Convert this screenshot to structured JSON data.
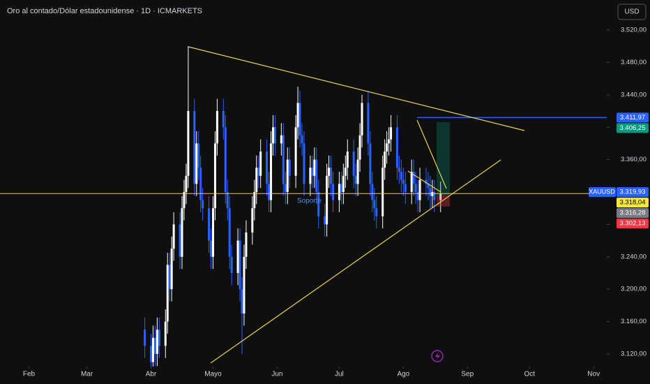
{
  "chart_data": {
    "type": "candlestick",
    "title": "Oro al contado/Dólar estadounidense · 1D · ICMARKETS",
    "currency_button": "USD",
    "symbol": "XAUUSD",
    "annotation": "Soporte",
    "up_color": "#ffffff",
    "down_color": "#2962ff",
    "xlim": [
      17,
      310
    ],
    "xticks": [
      {
        "value": 31,
        "label": "Feb"
      },
      {
        "value": 59,
        "label": "Mar"
      },
      {
        "value": 90,
        "label": "Abr"
      },
      {
        "value": 120,
        "label": "Mayo"
      },
      {
        "value": 151,
        "label": "Jun"
      },
      {
        "value": 181,
        "label": "Jul"
      },
      {
        "value": 212,
        "label": "Ago"
      },
      {
        "value": 243,
        "label": "Sep"
      },
      {
        "value": 273,
        "label": "Oct"
      },
      {
        "value": 304,
        "label": "Nov"
      }
    ],
    "ylim": [
      3120,
      3520
    ],
    "yticks": [
      {
        "value": 3120,
        "label": "3.120,00"
      },
      {
        "value": 3160,
        "label": "3.160,00"
      },
      {
        "value": 3200,
        "label": "3.200,00"
      },
      {
        "value": 3240,
        "label": "3.240,00"
      },
      {
        "value": 3280,
        "label": "3.280,00"
      },
      {
        "value": 3320,
        "label": "3.320,00"
      },
      {
        "value": 3360,
        "label": "3.360,00"
      },
      {
        "value": 3400,
        "label": "3.400,00"
      },
      {
        "value": 3440,
        "label": "3.440,00"
      },
      {
        "value": 3480,
        "label": "3.480,00"
      },
      {
        "value": 3520,
        "label": "3.520,00"
      }
    ],
    "grid": false,
    "x": [
      87,
      90,
      91,
      92,
      93,
      94,
      97,
      98,
      99,
      100,
      101,
      104,
      105,
      106,
      107,
      108,
      111,
      112,
      113,
      114,
      115,
      118,
      119,
      120,
      121,
      122,
      125,
      126,
      127,
      128,
      129,
      132,
      133,
      134,
      135,
      136,
      139,
      140,
      141,
      142,
      143,
      146,
      147,
      148,
      149,
      150,
      153,
      154,
      155,
      156,
      157,
      160,
      161,
      162,
      163,
      164,
      167,
      168,
      169,
      170,
      171,
      174,
      175,
      176,
      177,
      178,
      181,
      182,
      183,
      184,
      185,
      188,
      189,
      190,
      191,
      192,
      195,
      196,
      197,
      198,
      199,
      202,
      203,
      204,
      205,
      206,
      209,
      210,
      211,
      212,
      213,
      216,
      217,
      218,
      219,
      220,
      223,
      224,
      225,
      226,
      227,
      230
    ],
    "open": [
      3150,
      3130,
      3110,
      3140,
      3120,
      3150,
      3130,
      3160,
      3230,
      3200,
      3250,
      3280,
      3240,
      3300,
      3320,
      3340,
      3420,
      3330,
      3380,
      3350,
      3310,
      3300,
      3260,
      3240,
      3300,
      3380,
      3420,
      3400,
      3320,
      3300,
      3240,
      3220,
      3260,
      3200,
      3170,
      3240,
      3270,
      3300,
      3320,
      3350,
      3340,
      3370,
      3330,
      3310,
      3380,
      3400,
      3380,
      3390,
      3330,
      3320,
      3360,
      3340,
      3400,
      3430,
      3390,
      3380,
      3330,
      3350,
      3340,
      3360,
      3320,
      3290,
      3280,
      3340,
      3350,
      3330,
      3310,
      3330,
      3320,
      3340,
      3350,
      3370,
      3340,
      3330,
      3360,
      3390,
      3430,
      3380,
      3330,
      3310,
      3300,
      3290,
      3350,
      3370,
      3380,
      3385,
      3400,
      3350,
      3345,
      3335,
      3330,
      3320,
      3345,
      3330,
      3320,
      3310,
      3335,
      3330,
      3325,
      3315,
      3320,
      3310
    ],
    "high": [
      3165,
      3145,
      3155,
      3155,
      3165,
      3165,
      3175,
      3245,
      3245,
      3265,
      3295,
      3295,
      3315,
      3335,
      3355,
      3500,
      3435,
      3395,
      3395,
      3365,
      3325,
      3315,
      3275,
      3315,
      3395,
      3435,
      3435,
      3415,
      3335,
      3315,
      3255,
      3275,
      3275,
      3215,
      3255,
      3285,
      3315,
      3335,
      3365,
      3365,
      3385,
      3385,
      3345,
      3395,
      3415,
      3415,
      3405,
      3405,
      3345,
      3375,
      3375,
      3415,
      3450,
      3445,
      3405,
      3395,
      3365,
      3365,
      3375,
      3375,
      3335,
      3305,
      3355,
      3365,
      3365,
      3345,
      3345,
      3345,
      3355,
      3365,
      3385,
      3385,
      3355,
      3375,
      3405,
      3440,
      3445,
      3395,
      3345,
      3325,
      3315,
      3365,
      3385,
      3395,
      3400,
      3415,
      3415,
      3365,
      3360,
      3350,
      3345,
      3360,
      3360,
      3345,
      3335,
      3350,
      3350,
      3345,
      3340,
      3335,
      3335,
      3333
    ],
    "low": [
      3115,
      3095,
      3095,
      3105,
      3105,
      3115,
      3115,
      3145,
      3185,
      3185,
      3235,
      3225,
      3225,
      3285,
      3305,
      3325,
      3315,
      3315,
      3335,
      3295,
      3285,
      3245,
      3225,
      3225,
      3285,
      3365,
      3385,
      3305,
      3285,
      3225,
      3205,
      3205,
      3185,
      3120,
      3155,
      3225,
      3255,
      3285,
      3305,
      3325,
      3325,
      3315,
      3295,
      3295,
      3365,
      3365,
      3365,
      3315,
      3305,
      3305,
      3325,
      3325,
      3385,
      3375,
      3365,
      3315,
      3315,
      3325,
      3325,
      3305,
      3275,
      3265,
      3265,
      3325,
      3315,
      3295,
      3295,
      3305,
      3305,
      3325,
      3335,
      3325,
      3315,
      3315,
      3345,
      3375,
      3365,
      3315,
      3295,
      3285,
      3275,
      3275,
      3335,
      3355,
      3365,
      3370,
      3335,
      3330,
      3320,
      3315,
      3305,
      3305,
      3315,
      3305,
      3295,
      3295,
      3315,
      3310,
      3300,
      3300,
      3295,
      3295
    ],
    "close": [
      3130,
      3110,
      3140,
      3120,
      3150,
      3130,
      3160,
      3230,
      3200,
      3250,
      3280,
      3240,
      3300,
      3320,
      3340,
      3420,
      3330,
      3380,
      3350,
      3310,
      3300,
      3260,
      3240,
      3300,
      3380,
      3420,
      3400,
      3320,
      3300,
      3240,
      3220,
      3260,
      3200,
      3170,
      3240,
      3270,
      3300,
      3320,
      3350,
      3340,
      3370,
      3330,
      3310,
      3380,
      3400,
      3380,
      3390,
      3330,
      3320,
      3360,
      3340,
      3400,
      3430,
      3390,
      3380,
      3330,
      3350,
      3340,
      3360,
      3320,
      3290,
      3280,
      3340,
      3350,
      3330,
      3310,
      3330,
      3320,
      3340,
      3350,
      3370,
      3340,
      3330,
      3360,
      3390,
      3430,
      3380,
      3330,
      3310,
      3300,
      3290,
      3350,
      3370,
      3380,
      3385,
      3400,
      3350,
      3345,
      3335,
      3330,
      3320,
      3345,
      3330,
      3320,
      3310,
      3335,
      3330,
      3325,
      3315,
      3320,
      3310,
      3318
    ],
    "price_labels": [
      {
        "value": 3411.97,
        "label": "3.411,97",
        "color": "#2962ff"
      },
      {
        "value": 3406.25,
        "label": "3.406,25",
        "color": "#089981"
      },
      {
        "value": 3319.93,
        "label": "3.319,93",
        "color": "#2962ff"
      },
      {
        "value": 3318.04,
        "label": "3.318,04",
        "color": "#f5e642"
      },
      {
        "value": 3316.28,
        "label": "3.316,28",
        "color": "#787b86"
      },
      {
        "value": 3302.13,
        "label": "3.302,13",
        "color": "#f23645"
      }
    ]
  }
}
